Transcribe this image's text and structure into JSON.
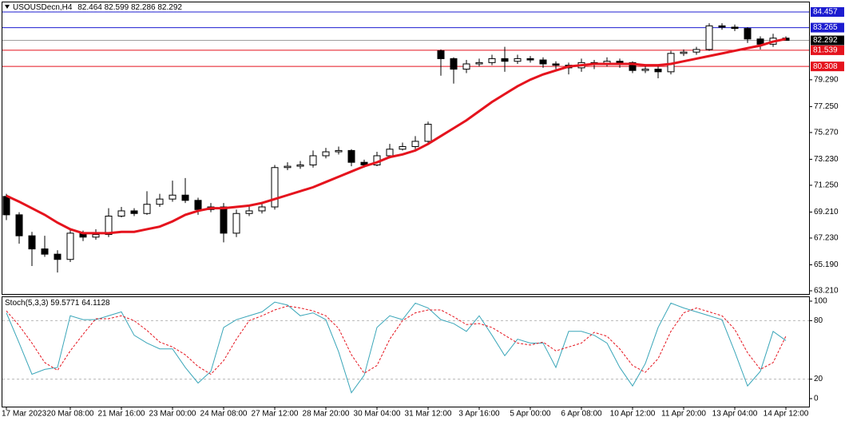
{
  "chart_data": [
    {
      "type": "candlestick",
      "title": "USOUSDecn,H4",
      "categories": [
        "17 Mar 2023",
        null,
        null,
        null,
        null,
        "20 Mar 08:00",
        null,
        null,
        null,
        "21 Mar 16:00",
        null,
        null,
        null,
        "23 Mar 00:00",
        null,
        null,
        null,
        "24 Mar 08:00",
        null,
        null,
        null,
        "27 Mar 12:00",
        null,
        null,
        null,
        "28 Mar 20:00",
        null,
        null,
        null,
        "30 Mar 04:00",
        null,
        null,
        null,
        "31 Mar 12:00",
        null,
        null,
        null,
        "3 Apr 16:00",
        null,
        null,
        null,
        "5 Apr 00:00",
        null,
        null,
        null,
        "6 Apr 08:00",
        null,
        null,
        null,
        "10 Apr 12:00",
        null,
        null,
        null,
        "11 Apr 20:00",
        null,
        null,
        null,
        "13 Apr 04:00",
        null,
        null,
        null,
        "14 Apr 12:00"
      ],
      "open": [
        70.4,
        69.0,
        67.4,
        66.4,
        66.0,
        65.6,
        67.6,
        67.3,
        67.5,
        68.9,
        69.3,
        69.1,
        69.8,
        70.2,
        70.5,
        70.1,
        69.4,
        69.6,
        67.6,
        69.1,
        69.3,
        69.6,
        72.6,
        72.7,
        72.8,
        73.5,
        73.8,
        73.9,
        73.0,
        72.8,
        73.5,
        74.0,
        74.2,
        74.6,
        81.5,
        80.9,
        80.1,
        80.5,
        80.6,
        80.9,
        80.7,
        80.9,
        80.8,
        80.5,
        80.4,
        80.2,
        80.6,
        80.5,
        80.7,
        80.6,
        80.0,
        80.1,
        79.9,
        81.3,
        81.4,
        81.6,
        83.4,
        83.3,
        83.2,
        82.4,
        82.0,
        82.464
      ],
      "high": [
        70.6,
        69.2,
        67.7,
        67.4,
        66.3,
        67.9,
        67.8,
        67.9,
        69.5,
        69.6,
        69.5,
        70.8,
        70.6,
        71.6,
        71.8,
        70.3,
        69.9,
        69.9,
        69.4,
        69.7,
        70.0,
        72.8,
        73.0,
        73.1,
        73.9,
        74.1,
        74.2,
        74.0,
        73.2,
        73.8,
        74.4,
        74.5,
        75.0,
        76.1,
        81.6,
        81.0,
        80.8,
        80.9,
        81.2,
        81.8,
        81.2,
        81.1,
        81.0,
        80.7,
        80.6,
        80.9,
        80.8,
        81.0,
        80.9,
        80.7,
        80.4,
        80.3,
        81.5,
        81.6,
        81.8,
        83.6,
        83.6,
        83.5,
        83.3,
        82.6,
        82.8,
        82.599
      ],
      "low": [
        68.6,
        66.8,
        65.1,
        65.8,
        64.6,
        65.4,
        67.0,
        67.1,
        67.3,
        68.8,
        68.9,
        69.0,
        69.6,
        70.0,
        69.9,
        69.0,
        69.2,
        66.9,
        67.3,
        68.9,
        69.1,
        69.4,
        72.4,
        72.5,
        72.6,
        73.3,
        73.6,
        72.7,
        72.6,
        72.7,
        73.3,
        73.9,
        74.0,
        74.5,
        79.6,
        79.0,
        79.8,
        80.3,
        80.4,
        79.9,
        80.5,
        80.6,
        80.2,
        80.1,
        79.7,
        79.9,
        80.1,
        80.3,
        80.2,
        79.8,
        79.8,
        79.4,
        79.7,
        81.1,
        81.2,
        81.5,
        83.1,
        83.0,
        82.1,
        81.6,
        81.8,
        82.286
      ],
      "close": [
        69.0,
        67.4,
        66.4,
        66.0,
        65.6,
        67.6,
        67.3,
        67.5,
        68.9,
        69.3,
        69.1,
        69.8,
        70.2,
        70.5,
        70.1,
        69.4,
        69.6,
        67.6,
        69.1,
        69.3,
        69.6,
        72.6,
        72.7,
        72.8,
        73.5,
        73.8,
        73.9,
        73.0,
        72.8,
        73.5,
        74.0,
        74.2,
        74.6,
        75.9,
        80.9,
        80.1,
        80.5,
        80.6,
        80.9,
        80.7,
        80.9,
        80.8,
        80.5,
        80.4,
        80.2,
        80.6,
        80.5,
        80.7,
        80.6,
        80.0,
        80.1,
        79.9,
        81.3,
        81.4,
        81.6,
        83.4,
        83.3,
        83.2,
        82.4,
        82.0,
        82.464,
        82.292
      ],
      "ma_values": [
        70.45,
        70.0,
        69.5,
        69.0,
        68.4,
        67.9,
        67.6,
        67.6,
        67.6,
        67.7,
        67.7,
        67.9,
        68.1,
        68.5,
        69.0,
        69.3,
        69.5,
        69.5,
        69.6,
        69.7,
        69.9,
        70.2,
        70.5,
        70.8,
        71.1,
        71.5,
        71.9,
        72.3,
        72.7,
        73.0,
        73.4,
        73.6,
        73.9,
        74.4,
        75.0,
        75.6,
        76.2,
        76.9,
        77.6,
        78.2,
        78.8,
        79.3,
        79.7,
        80.0,
        80.3,
        80.4,
        80.5,
        80.5,
        80.5,
        80.5,
        80.4,
        80.4,
        80.5,
        80.7,
        80.9,
        81.1,
        81.3,
        81.5,
        81.7,
        81.9,
        82.2,
        82.4
      ],
      "ma_color": "#e5131d",
      "levels": [
        {
          "value": 84.457,
          "color": "#1c1cd0"
        },
        {
          "value": 83.265,
          "color": "#1c1cd0"
        },
        {
          "value": 81.539,
          "color": "#e5131d"
        },
        {
          "value": 80.308,
          "color": "#e5131d"
        }
      ],
      "current_price_color": "#a0a0a0",
      "ylim": [
        62.966,
        85.248
      ],
      "yticks": [
        {
          "value": 63.21,
          "label": "63.210"
        },
        {
          "value": 65.19,
          "label": "65.190"
        },
        {
          "value": 67.23,
          "label": "67.230"
        },
        {
          "value": 69.21,
          "label": "69.210"
        },
        {
          "value": 71.25,
          "label": "71.250"
        },
        {
          "value": 73.23,
          "label": "73.230"
        },
        {
          "value": 75.27,
          "label": "75.270"
        },
        {
          "value": 77.25,
          "label": "77.250"
        },
        {
          "value": 79.29,
          "label": "79.290"
        }
      ]
    },
    {
      "type": "line",
      "title": "Stoch(5,3,3)",
      "series": [
        {
          "color": "#3aa6b9",
          "dashed": false,
          "values": [
            88,
            57,
            25,
            30,
            32,
            85,
            81,
            81,
            85,
            89,
            65,
            57,
            51,
            51,
            32,
            16,
            28,
            73,
            81,
            85,
            89,
            99,
            96,
            85,
            88,
            81,
            48,
            6,
            24,
            73,
            85,
            81,
            98,
            93,
            81,
            77,
            69,
            85,
            65,
            44,
            61,
            57,
            57,
            32,
            69,
            69,
            65,
            57,
            32,
            13,
            36,
            73,
            98,
            93,
            89,
            85,
            81,
            48,
            13,
            28,
            69,
            59.5771
          ]
        },
        {
          "color": "#e5131d",
          "dashed": true,
          "values": [
            90,
            75,
            57,
            37,
            29,
            49,
            66,
            82,
            82,
            85,
            80,
            70,
            58,
            53,
            45,
            33,
            25,
            39,
            61,
            80,
            85,
            91,
            95,
            93,
            90,
            85,
            72,
            45,
            26,
            34,
            61,
            80,
            88,
            91,
            91,
            84,
            76,
            77,
            73,
            65,
            57,
            55,
            58,
            49,
            53,
            57,
            68,
            64,
            51,
            34,
            27,
            41,
            69,
            88,
            93,
            89,
            85,
            71,
            47,
            30,
            37,
            64.1128
          ]
        }
      ],
      "levels": [
        80,
        20
      ],
      "ylim": [
        -8.2,
        104.9
      ],
      "yticks": [
        0,
        20,
        80,
        100
      ]
    }
  ]
}
